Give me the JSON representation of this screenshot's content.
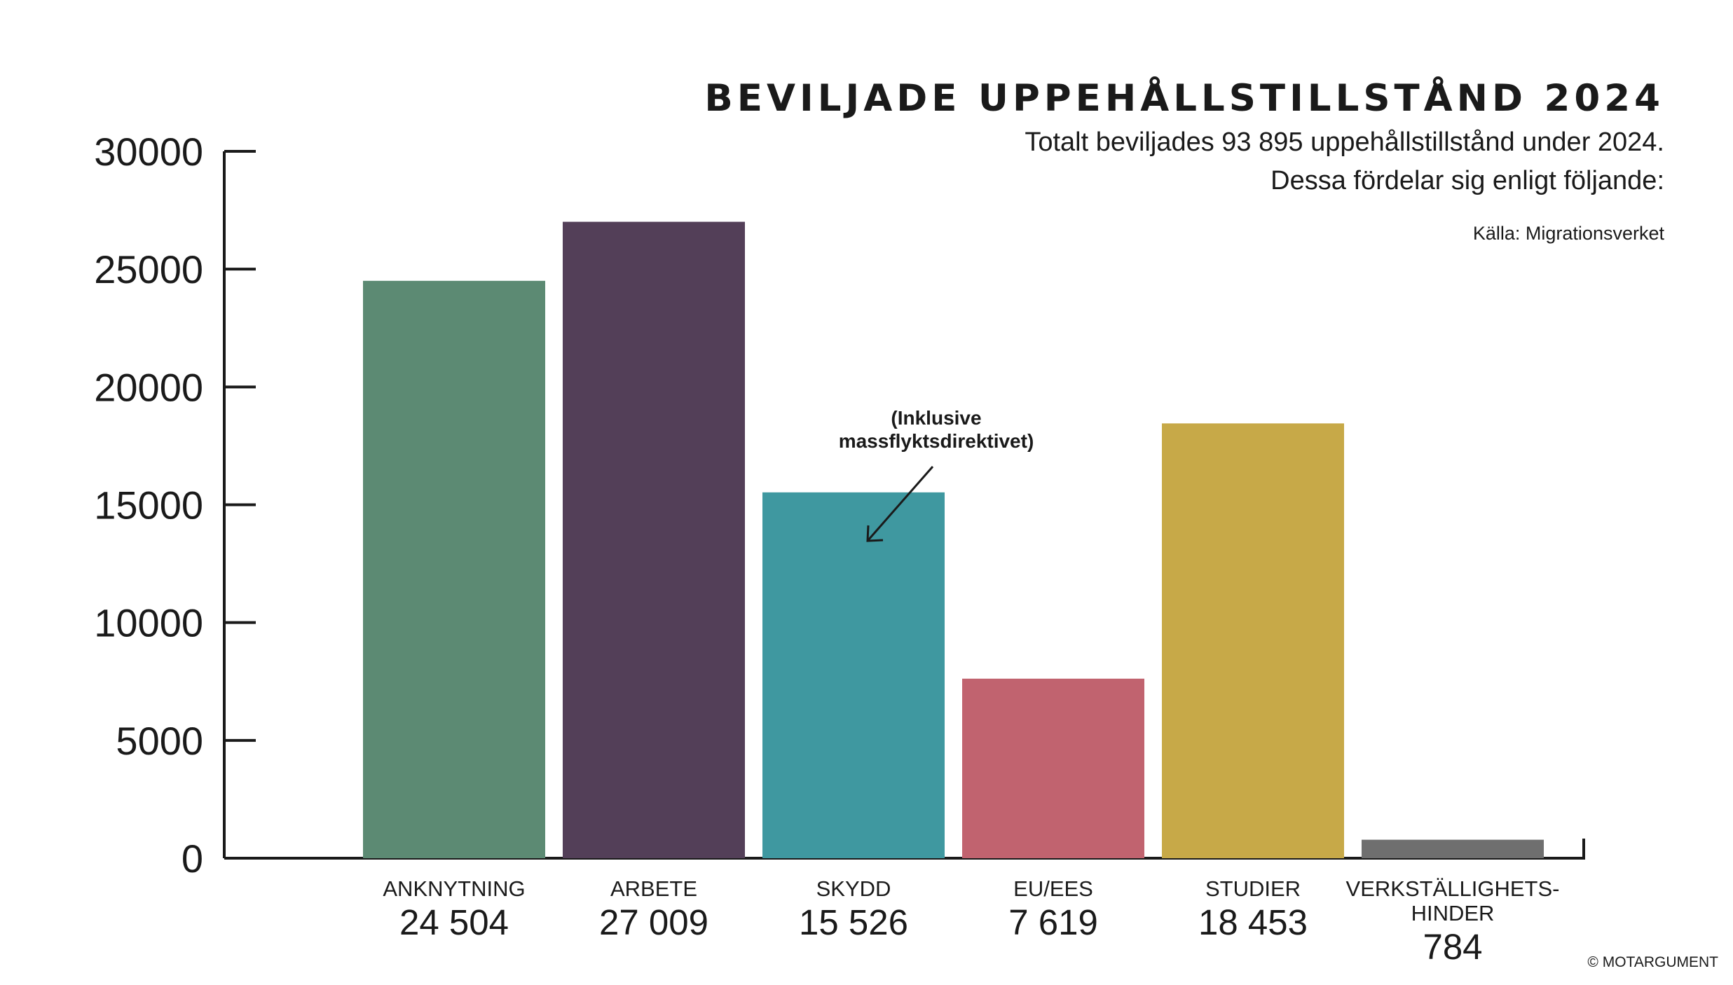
{
  "chart_data": {
    "type": "bar",
    "title": "BEVILJADE UPPEHÅLLSTILLSTÅND 2024",
    "subtitle": [
      "Totalt beviljades 93 895 uppehållstillstånd under 2024.",
      "Dessa fördelar sig enligt följande:"
    ],
    "source": "Källa: Migrationsverket",
    "categories": [
      {
        "label": [
          "ANKNYTNING"
        ],
        "value_label": "24 504"
      },
      {
        "label": [
          "ARBETE"
        ],
        "value_label": "27 009"
      },
      {
        "label": [
          "SKYDD"
        ],
        "value_label": "15 526"
      },
      {
        "label": [
          "EU/EES"
        ],
        "value_label": "7 619"
      },
      {
        "label": [
          "STUDIER"
        ],
        "value_label": "18 453"
      },
      {
        "label": [
          "VERKSTÄLLIGHETS-",
          "HINDER"
        ],
        "value_label": "784"
      }
    ],
    "values": [
      24504,
      27009,
      15526,
      7619,
      18453,
      784
    ],
    "colors": [
      "#5c8a73",
      "#533f58",
      "#3f98a0",
      "#c1636f",
      "#c7a948",
      "#6f6f6f"
    ],
    "ylim": [
      0,
      30000
    ],
    "yticks": [
      "0",
      "5000",
      "10000",
      "15000",
      "20000",
      "25000",
      "30000"
    ],
    "grid": false,
    "annotation": {
      "lines": [
        "(Inklusive",
        "massflyktsdirektivet)"
      ],
      "target_category": "SKYDD"
    },
    "copyright": "© MOTARGUMENT"
  }
}
